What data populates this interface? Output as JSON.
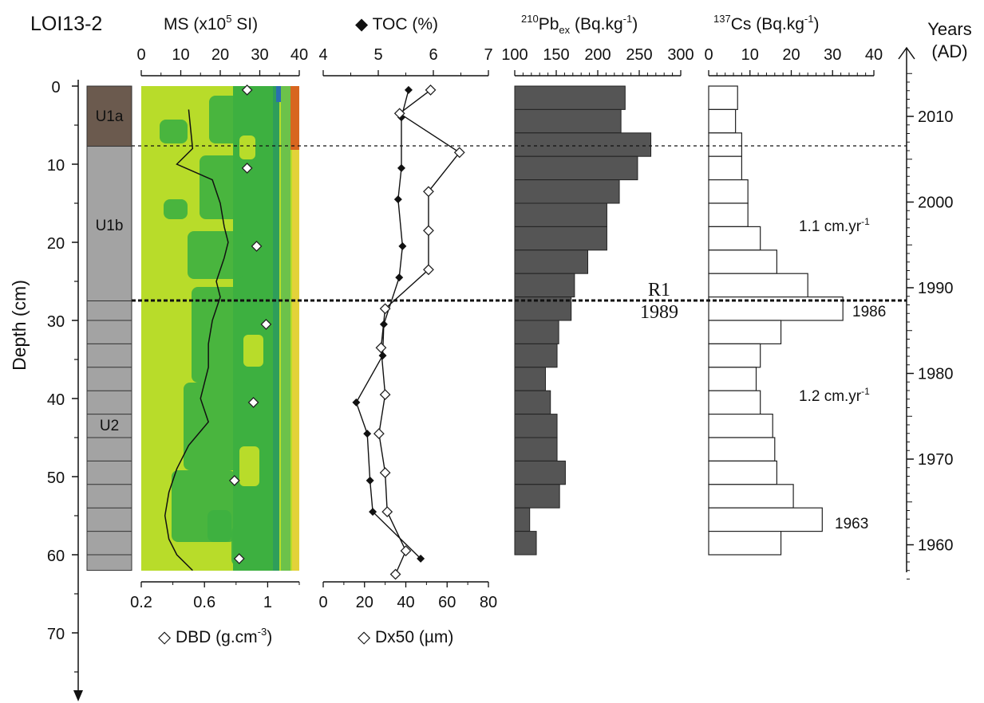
{
  "title": "LOI13-2",
  "depth_axis": {
    "label": "Depth (cm)",
    "ticks": [
      "0",
      "10",
      "20",
      "30",
      "40",
      "50",
      "60",
      "70"
    ]
  },
  "years_axis": {
    "label_line1": "Years",
    "label_line2": "(AD)",
    "ticks": [
      "2010",
      "2000",
      "1990",
      "1980",
      "1970",
      "1960"
    ]
  },
  "units": {
    "u1a": "U1a",
    "u1b": "U1b",
    "u2": "U2"
  },
  "ms_panel": {
    "top_label_pre": "MS (x10",
    "top_label_sup": "5",
    "top_label_post": " SI)",
    "top_ticks": [
      "0",
      "10",
      "20",
      "30",
      "40"
    ],
    "bottom_label": "◇ DBD (g.cm",
    "bottom_label_sup": "-3",
    "bottom_label_end": ")",
    "bottom_ticks": [
      "0.2",
      "0.6",
      "1"
    ]
  },
  "toc_panel": {
    "top_label": "◆ TOC (%)",
    "top_ticks": [
      "4",
      "5",
      "6",
      "7"
    ],
    "bottom_label": "◇ Dx50 (µm)",
    "bottom_ticks": [
      "0",
      "20",
      "40",
      "60",
      "80"
    ]
  },
  "pb_panel": {
    "label_sup": "210",
    "label_main": "Pb",
    "label_sub": "ex",
    "label_units": " (Bq.kg",
    "label_units_sup": "-1",
    "label_close": ")",
    "ticks": [
      "100",
      "150",
      "200",
      "250",
      "300"
    ]
  },
  "cs_panel": {
    "label_sup": "137",
    "label_main": "Cs (Bq.kg",
    "label_units_sup": "-1",
    "label_close": ")",
    "ticks": [
      "0",
      "10",
      "20",
      "30",
      "40"
    ]
  },
  "annotations": {
    "r1": "R1",
    "r1_year": "1989",
    "rate_upper": "1.1 cm.yr",
    "rate_upper_sup": "-1",
    "rate_lower": "1.2 cm.yr",
    "rate_lower_sup": "-1",
    "cs_peak": "1986",
    "cs_1963": "1963"
  },
  "colors": {
    "u1a": "#6b5a4e",
    "unit_gray": "#a3a3a3",
    "pb_bar": "#555555",
    "ms_lime": "#b8dc2a",
    "ms_green": "#3db040",
    "line": "#111111"
  },
  "chart_data": [
    {
      "type": "line",
      "name": "MS profile",
      "y_axis": "depth (cm)",
      "depth": [
        3,
        8,
        10,
        12,
        15,
        18,
        20,
        22,
        25,
        27,
        30,
        33,
        36,
        40,
        43,
        46,
        49,
        52,
        55,
        58,
        60,
        62
      ],
      "ms": [
        12,
        13,
        9,
        18,
        20,
        21,
        22,
        21,
        19,
        20,
        18,
        17,
        17,
        15,
        17,
        12,
        9,
        7,
        6,
        7,
        9,
        13
      ],
      "xlim": [
        0,
        40
      ],
      "ylim": [
        0,
        62
      ]
    },
    {
      "type": "scatter",
      "name": "DBD",
      "depth": [
        0.5,
        10.5,
        20.5,
        30.5,
        40.5,
        50.5,
        60.5
      ],
      "dbd": [
        0.87,
        0.87,
        0.93,
        0.99,
        0.91,
        0.79,
        0.82
      ],
      "xlim": [
        0.2,
        1.2
      ]
    },
    {
      "type": "line",
      "name": "TOC",
      "depth": [
        0.5,
        4,
        10.5,
        14.5,
        20.5,
        24.5,
        30.5,
        34.5,
        40.5,
        44.5,
        50.5,
        54.5,
        60.5
      ],
      "toc": [
        5.55,
        5.42,
        5.42,
        5.36,
        5.44,
        5.38,
        5.1,
        5.08,
        4.6,
        4.8,
        4.85,
        4.9,
        5.77
      ],
      "xlim": [
        4,
        7
      ]
    },
    {
      "type": "line",
      "name": "Dx50",
      "depth": [
        0.5,
        3.5,
        8.5,
        13.5,
        18.5,
        23.5,
        28.5,
        33.5,
        39.5,
        44.5,
        49.5,
        54.5,
        59.5,
        62.5
      ],
      "dx50": [
        52,
        37,
        66,
        51,
        51,
        51,
        30,
        28,
        30,
        27,
        30,
        31,
        40,
        35
      ],
      "xlim": [
        0,
        80
      ]
    },
    {
      "type": "bar",
      "name": "210Pbex",
      "depth_top": [
        0,
        3,
        6,
        9,
        12,
        15,
        18,
        21,
        24,
        27,
        30,
        33,
        36,
        39,
        42,
        45,
        48,
        51,
        54,
        57
      ],
      "depth_bottom": [
        3,
        6,
        9,
        12,
        15,
        18,
        21,
        24,
        27,
        30,
        33,
        36,
        39,
        42,
        45,
        48,
        51,
        54,
        57,
        60
      ],
      "values": [
        233,
        228,
        264,
        248,
        226,
        211,
        211,
        188,
        172,
        168,
        153,
        151,
        137,
        143,
        151,
        151,
        161,
        154,
        118,
        126
      ],
      "xlim": [
        100,
        300
      ]
    },
    {
      "type": "bar",
      "name": "137Cs",
      "depth_top": [
        0,
        3,
        6,
        9,
        12,
        15,
        18,
        21,
        24,
        27,
        30,
        33,
        36,
        39,
        42,
        45,
        48,
        51,
        54,
        57
      ],
      "depth_bottom": [
        3,
        6,
        9,
        12,
        15,
        18,
        21,
        24,
        27,
        30,
        33,
        36,
        39,
        42,
        45,
        48,
        51,
        54,
        57,
        60
      ],
      "values": [
        7,
        6.5,
        8,
        8,
        9.5,
        9.5,
        12.5,
        16.5,
        24,
        32.5,
        17.5,
        12.5,
        11.5,
        12.5,
        15.5,
        16,
        16.5,
        20.5,
        27.5,
        17.5
      ],
      "xlim": [
        0,
        40
      ]
    }
  ]
}
